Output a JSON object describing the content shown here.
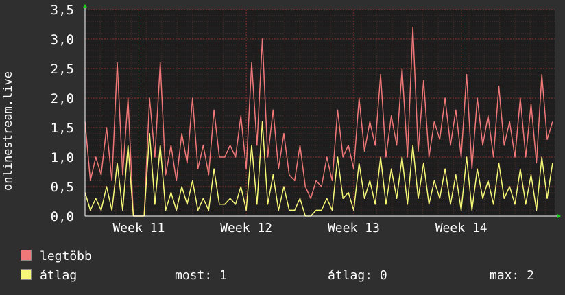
{
  "chart_data": {
    "type": "line",
    "ylabel": "onlinestream.live",
    "ylim": [
      0,
      3.5
    ],
    "yticks": [
      "0,0",
      "0,5",
      "1,0",
      "1,5",
      "2,0",
      "2,5",
      "3,0",
      "3,5"
    ],
    "ytick_values": [
      0,
      0.5,
      1.0,
      1.5,
      2.0,
      2.5,
      3.0,
      3.5
    ],
    "xticks": [
      "Week 11",
      "Week 12",
      "Week 13",
      "Week 14"
    ],
    "xtick_values": [
      11,
      12,
      13,
      14
    ],
    "xlim": [
      10.5,
      14.87
    ],
    "grid": true,
    "legend_placement": "bottom-left",
    "series": [
      {
        "name": "legtöbb",
        "color": "#f07878",
        "x": [
          10.5,
          10.55,
          10.6,
          10.65,
          10.7,
          10.75,
          10.8,
          10.85,
          10.9,
          10.95,
          11.0,
          11.05,
          11.1,
          11.15,
          11.2,
          11.25,
          11.3,
          11.35,
          11.4,
          11.45,
          11.5,
          11.55,
          11.6,
          11.65,
          11.7,
          11.75,
          11.8,
          11.85,
          11.9,
          11.95,
          12.0,
          12.05,
          12.1,
          12.15,
          12.2,
          12.25,
          12.3,
          12.35,
          12.4,
          12.45,
          12.5,
          12.55,
          12.6,
          12.65,
          12.7,
          12.75,
          12.8,
          12.85,
          12.9,
          12.95,
          13.0,
          13.05,
          13.1,
          13.15,
          13.2,
          13.25,
          13.3,
          13.35,
          13.4,
          13.45,
          13.5,
          13.55,
          13.6,
          13.65,
          13.7,
          13.75,
          13.8,
          13.85,
          13.9,
          13.95,
          14.0,
          14.05,
          14.1,
          14.15,
          14.2,
          14.25,
          14.3,
          14.35,
          14.4,
          14.45,
          14.5,
          14.55,
          14.6,
          14.65,
          14.7,
          14.75,
          14.8,
          14.85
        ],
        "values": [
          1.6,
          0.6,
          1.0,
          0.7,
          1.5,
          0.6,
          2.6,
          0.7,
          2.0,
          0.0,
          0.0,
          0.0,
          2.0,
          1.0,
          2.6,
          0.7,
          1.2,
          0.6,
          1.4,
          0.9,
          2.0,
          0.8,
          1.2,
          0.7,
          1.8,
          1.0,
          1.0,
          1.2,
          1.0,
          1.7,
          0.8,
          2.6,
          1.2,
          3.0,
          1.0,
          1.8,
          0.8,
          1.4,
          0.7,
          0.6,
          1.2,
          0.5,
          0.3,
          0.6,
          0.5,
          1.0,
          0.6,
          1.8,
          1.0,
          1.2,
          0.8,
          2.0,
          1.1,
          1.6,
          1.2,
          2.4,
          1.0,
          1.7,
          1.2,
          2.5,
          1.0,
          3.2,
          1.1,
          2.3,
          1.0,
          1.6,
          1.3,
          2.0,
          1.2,
          1.8,
          1.0,
          2.4,
          0.8,
          2.0,
          1.2,
          1.7,
          1.0,
          2.2,
          1.2,
          1.6,
          1.0,
          2.0,
          1.0,
          1.9,
          0.9,
          2.4,
          1.3,
          1.6
        ]
      },
      {
        "name": "átlag",
        "color": "#f8f878",
        "x": [
          10.5,
          10.55,
          10.6,
          10.65,
          10.7,
          10.75,
          10.8,
          10.85,
          10.9,
          10.95,
          11.0,
          11.05,
          11.1,
          11.15,
          11.2,
          11.25,
          11.3,
          11.35,
          11.4,
          11.45,
          11.5,
          11.55,
          11.6,
          11.65,
          11.7,
          11.75,
          11.8,
          11.85,
          11.9,
          11.95,
          12.0,
          12.05,
          12.1,
          12.15,
          12.2,
          12.25,
          12.3,
          12.35,
          12.4,
          12.45,
          12.5,
          12.55,
          12.6,
          12.65,
          12.7,
          12.75,
          12.8,
          12.85,
          12.9,
          12.95,
          13.0,
          13.05,
          13.1,
          13.15,
          13.2,
          13.25,
          13.3,
          13.35,
          13.4,
          13.45,
          13.5,
          13.55,
          13.6,
          13.65,
          13.7,
          13.75,
          13.8,
          13.85,
          13.9,
          13.95,
          14.0,
          14.05,
          14.1,
          14.15,
          14.2,
          14.25,
          14.3,
          14.35,
          14.4,
          14.45,
          14.5,
          14.55,
          14.6,
          14.65,
          14.7,
          14.75,
          14.8,
          14.85
        ],
        "values": [
          0.4,
          0.1,
          0.3,
          0.1,
          0.5,
          0.1,
          0.9,
          0.1,
          1.2,
          0.0,
          0.0,
          0.0,
          1.4,
          0.2,
          1.2,
          0.1,
          0.4,
          0.1,
          0.5,
          0.2,
          0.6,
          0.1,
          0.3,
          0.1,
          0.8,
          0.2,
          0.2,
          0.3,
          0.2,
          0.5,
          0.1,
          1.2,
          0.2,
          1.6,
          0.2,
          0.7,
          0.1,
          0.5,
          0.1,
          0.1,
          0.3,
          0.0,
          0.0,
          0.1,
          0.1,
          0.3,
          0.1,
          1.0,
          0.3,
          0.4,
          0.1,
          0.9,
          0.3,
          0.6,
          0.2,
          1.0,
          0.2,
          0.8,
          0.3,
          1.0,
          0.2,
          1.2,
          0.3,
          0.9,
          0.2,
          0.6,
          0.3,
          0.8,
          0.2,
          0.7,
          0.1,
          1.0,
          0.1,
          0.8,
          0.3,
          0.6,
          0.2,
          0.9,
          0.3,
          0.5,
          0.2,
          0.8,
          0.2,
          0.7,
          0.1,
          1.0,
          0.3,
          0.9
        ]
      }
    ]
  },
  "legend": {
    "items": [
      {
        "label": "legtöbb",
        "color": "#f07878"
      },
      {
        "label": "átlag",
        "color": "#f8f878"
      }
    ]
  },
  "stats": {
    "most": "most: 1",
    "atlag": "átlag: 0",
    "max": "max: 2"
  },
  "colors": {
    "background": "#2f2f2f",
    "plot_background": "#1e1e1e",
    "grid": "#8a3030",
    "axis": "#ffffff",
    "arrow": "#22cc22"
  }
}
